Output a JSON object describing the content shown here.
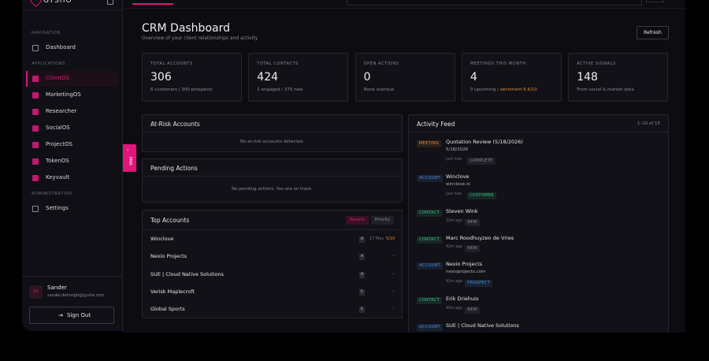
{
  "sidebar": {
    "brand": "GYSHO",
    "sections": [
      {
        "title": "NAVIGATION",
        "items": [
          {
            "label": "Dashboard"
          }
        ]
      },
      {
        "title": "APPLICATIONS",
        "items": [
          {
            "label": "ClientOS",
            "active": true
          },
          {
            "label": "MarketingOS"
          },
          {
            "label": "Researcher"
          },
          {
            "label": "SocialOS"
          },
          {
            "label": "ProjectOS"
          },
          {
            "label": "TokenOS"
          },
          {
            "label": "Keyvault"
          }
        ]
      },
      {
        "title": "ADMINISTRATION",
        "items": [
          {
            "label": "Settings"
          }
        ]
      }
    ],
    "user": {
      "initials": "SD",
      "name": "Sander",
      "email": "sander.dehoogh@gysho.com",
      "sign_out": "Sign Out"
    }
  },
  "drawer_tab": "PMA",
  "header": {
    "title": "CRM Dashboard",
    "subtitle": "Overview of your client relationships and activity",
    "refresh": "Refresh"
  },
  "stats": [
    {
      "label": "TOTAL ACCOUNTS",
      "value": 306,
      "note": "6 customers / 300 prospects"
    },
    {
      "label": "TOTAL CONTACTS",
      "value": 424,
      "note": "1 engaged / 375 new"
    },
    {
      "label": "OPEN ACTIONS",
      "value": 0,
      "note": "None overdue"
    },
    {
      "label": "MEETINGS THIS MONTH",
      "value": 4,
      "note": "0 upcoming / ",
      "note_highlight": "sentiment 6.6/10"
    },
    {
      "label": "ACTIVE SIGNALS",
      "value": 148,
      "note": "From social & market data"
    }
  ],
  "at_risk": {
    "title": "At-Risk Accounts",
    "message": "No at-risk accounts detected."
  },
  "pending": {
    "title": "Pending Actions",
    "message": "No pending actions. You are on track."
  },
  "top_accounts": {
    "title": "Top Accounts",
    "tabs": [
      {
        "label": "Recent",
        "active": true
      },
      {
        "label": "Priority"
      }
    ],
    "rows": [
      {
        "name": "Winclove",
        "grade": "A",
        "date": "17 May",
        "score": "5/10"
      },
      {
        "name": "Nexio Projects",
        "grade": "A",
        "score": "--"
      },
      {
        "name": "SUE | Cloud Native Solutions",
        "grade": "A",
        "score": "--"
      },
      {
        "name": "Verisk Maplecroft",
        "grade": "C",
        "score": "--"
      },
      {
        "name": "Global Sports",
        "grade": "C",
        "score": "--"
      }
    ]
  },
  "activity_feed": {
    "title": "Activity Feed",
    "range": "1–10 of 15",
    "items": [
      {
        "kind": "MEETING",
        "kind_color": "#e08a3c",
        "title": "Quotation Review (5/18/2026)",
        "detail": "5/18/2026",
        "time": "just now",
        "status": "COMPLETE",
        "status_color": "#8a8a95"
      },
      {
        "kind": "ACCOUNT",
        "kind_color": "#4f8fe0",
        "title": "Winclove",
        "detail": "winclove.nl",
        "time": "just now",
        "status": "CUSTOMER",
        "status_color": "#3fc184"
      },
      {
        "kind": "CONTACT",
        "kind_color": "#3fc184",
        "title": "Steven Wink",
        "time": "22m ago",
        "status": "NEW",
        "status_color": "#8a8a95"
      },
      {
        "kind": "CONTACT",
        "kind_color": "#3fc184",
        "title": "Marc Roodhuyzen de Vries",
        "time": "42m ago",
        "status": "NEW",
        "status_color": "#8a8a95"
      },
      {
        "kind": "ACCOUNT",
        "kind_color": "#4f8fe0",
        "title": "Nexio Projects",
        "detail": "nexioprojects.com",
        "time": "42m ago",
        "status": "PROSPECT",
        "status_color": "#4f8fe0"
      },
      {
        "kind": "CONTACT",
        "kind_color": "#3fc184",
        "title": "Erik Driehuis",
        "time": "45m ago",
        "status": "NEW",
        "status_color": "#8a8a95"
      },
      {
        "kind": "ACCOUNT",
        "kind_color": "#4f8fe0",
        "title": "SUE | Cloud Native Solutions"
      }
    ]
  }
}
